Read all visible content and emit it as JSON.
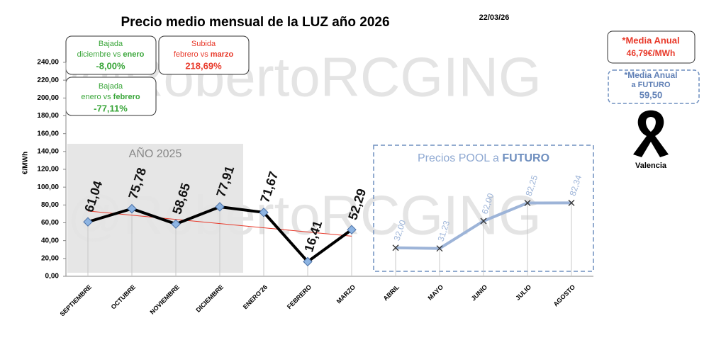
{
  "chart_data": {
    "type": "line",
    "title": "Precio medio mensual de la LUZ año 2026",
    "date": "22/03/26",
    "y_label": "€/MWh",
    "watermark": "@RobertoRCGING",
    "categories": [
      "SEPTIEMBRE",
      "OCTUBRE",
      "NOVIEMBRE",
      "DICIEMBRE",
      "ENERO'26",
      "FEBRERO",
      "MARZO",
      "ABRIL",
      "MAYO",
      "JUNIO",
      "JULIO",
      "AGOSTO"
    ],
    "series": [
      {
        "name": null,
        "color": "#000000",
        "marker_color": "#8db4e2",
        "values": [
          61.04,
          75.78,
          58.65,
          77.91,
          71.67,
          16.41,
          52.29,
          null,
          null,
          null,
          null,
          null
        ],
        "value_labels": [
          "61,04",
          "75,78",
          "58,65",
          "77,91",
          "71,67",
          "16,41",
          "52,29",
          null,
          null,
          null,
          null,
          null
        ]
      },
      {
        "name": null,
        "color": "#9db4d8",
        "marker_color": "#333333",
        "values": [
          null,
          null,
          null,
          null,
          null,
          null,
          null,
          32.0,
          31.23,
          62.0,
          82.25,
          82.34
        ],
        "value_labels": [
          null,
          null,
          null,
          null,
          null,
          null,
          null,
          "32,00",
          "31,23",
          "62,00",
          "82,25",
          "82,34"
        ]
      }
    ],
    "trendline": {
      "color": "#e8392a",
      "series": 0
    },
    "ylim": [
      0,
      240
    ],
    "yticks": [
      {
        "value": 0,
        "label": "0,00"
      },
      {
        "value": 20,
        "label": "20,00"
      },
      {
        "value": 40,
        "label": "40,00"
      },
      {
        "value": 60,
        "label": "60,00"
      },
      {
        "value": 80,
        "label": "80,00"
      },
      {
        "value": 100,
        "label": "100,00"
      },
      {
        "value": 120,
        "label": "120,00"
      },
      {
        "value": 140,
        "label": "140,00"
      },
      {
        "value": 160,
        "label": "160,00"
      },
      {
        "value": 180,
        "label": "180,00"
      },
      {
        "value": 200,
        "label": "200,00"
      },
      {
        "value": 220,
        "label": "220,00"
      },
      {
        "value": 240,
        "label": "240,00"
      }
    ],
    "region_2025": "AÑO 2025",
    "future_box": {
      "text": "Precios POOL a ",
      "bold": "FUTURO"
    },
    "box1": {
      "line1": "Bajada",
      "line2": "diciembre vs ",
      "line2_bold": "enero",
      "value": "-8,00%"
    },
    "box2": {
      "line1": "Subida",
      "line2": "febrero vs ",
      "line2_bold": "marzo",
      "value": "218,69%"
    },
    "box3": {
      "line1": "Bajada",
      "line2": "enero vs ",
      "line2_bold": "febrero",
      "value": "-77,11%"
    },
    "annual": {
      "line1": "*Media Anual",
      "value": "46,79€/MWh"
    },
    "annual_future": {
      "line1": "*Media Anual",
      "line2": "a FUTURO",
      "value": "59,50"
    },
    "city": "Valencia"
  }
}
